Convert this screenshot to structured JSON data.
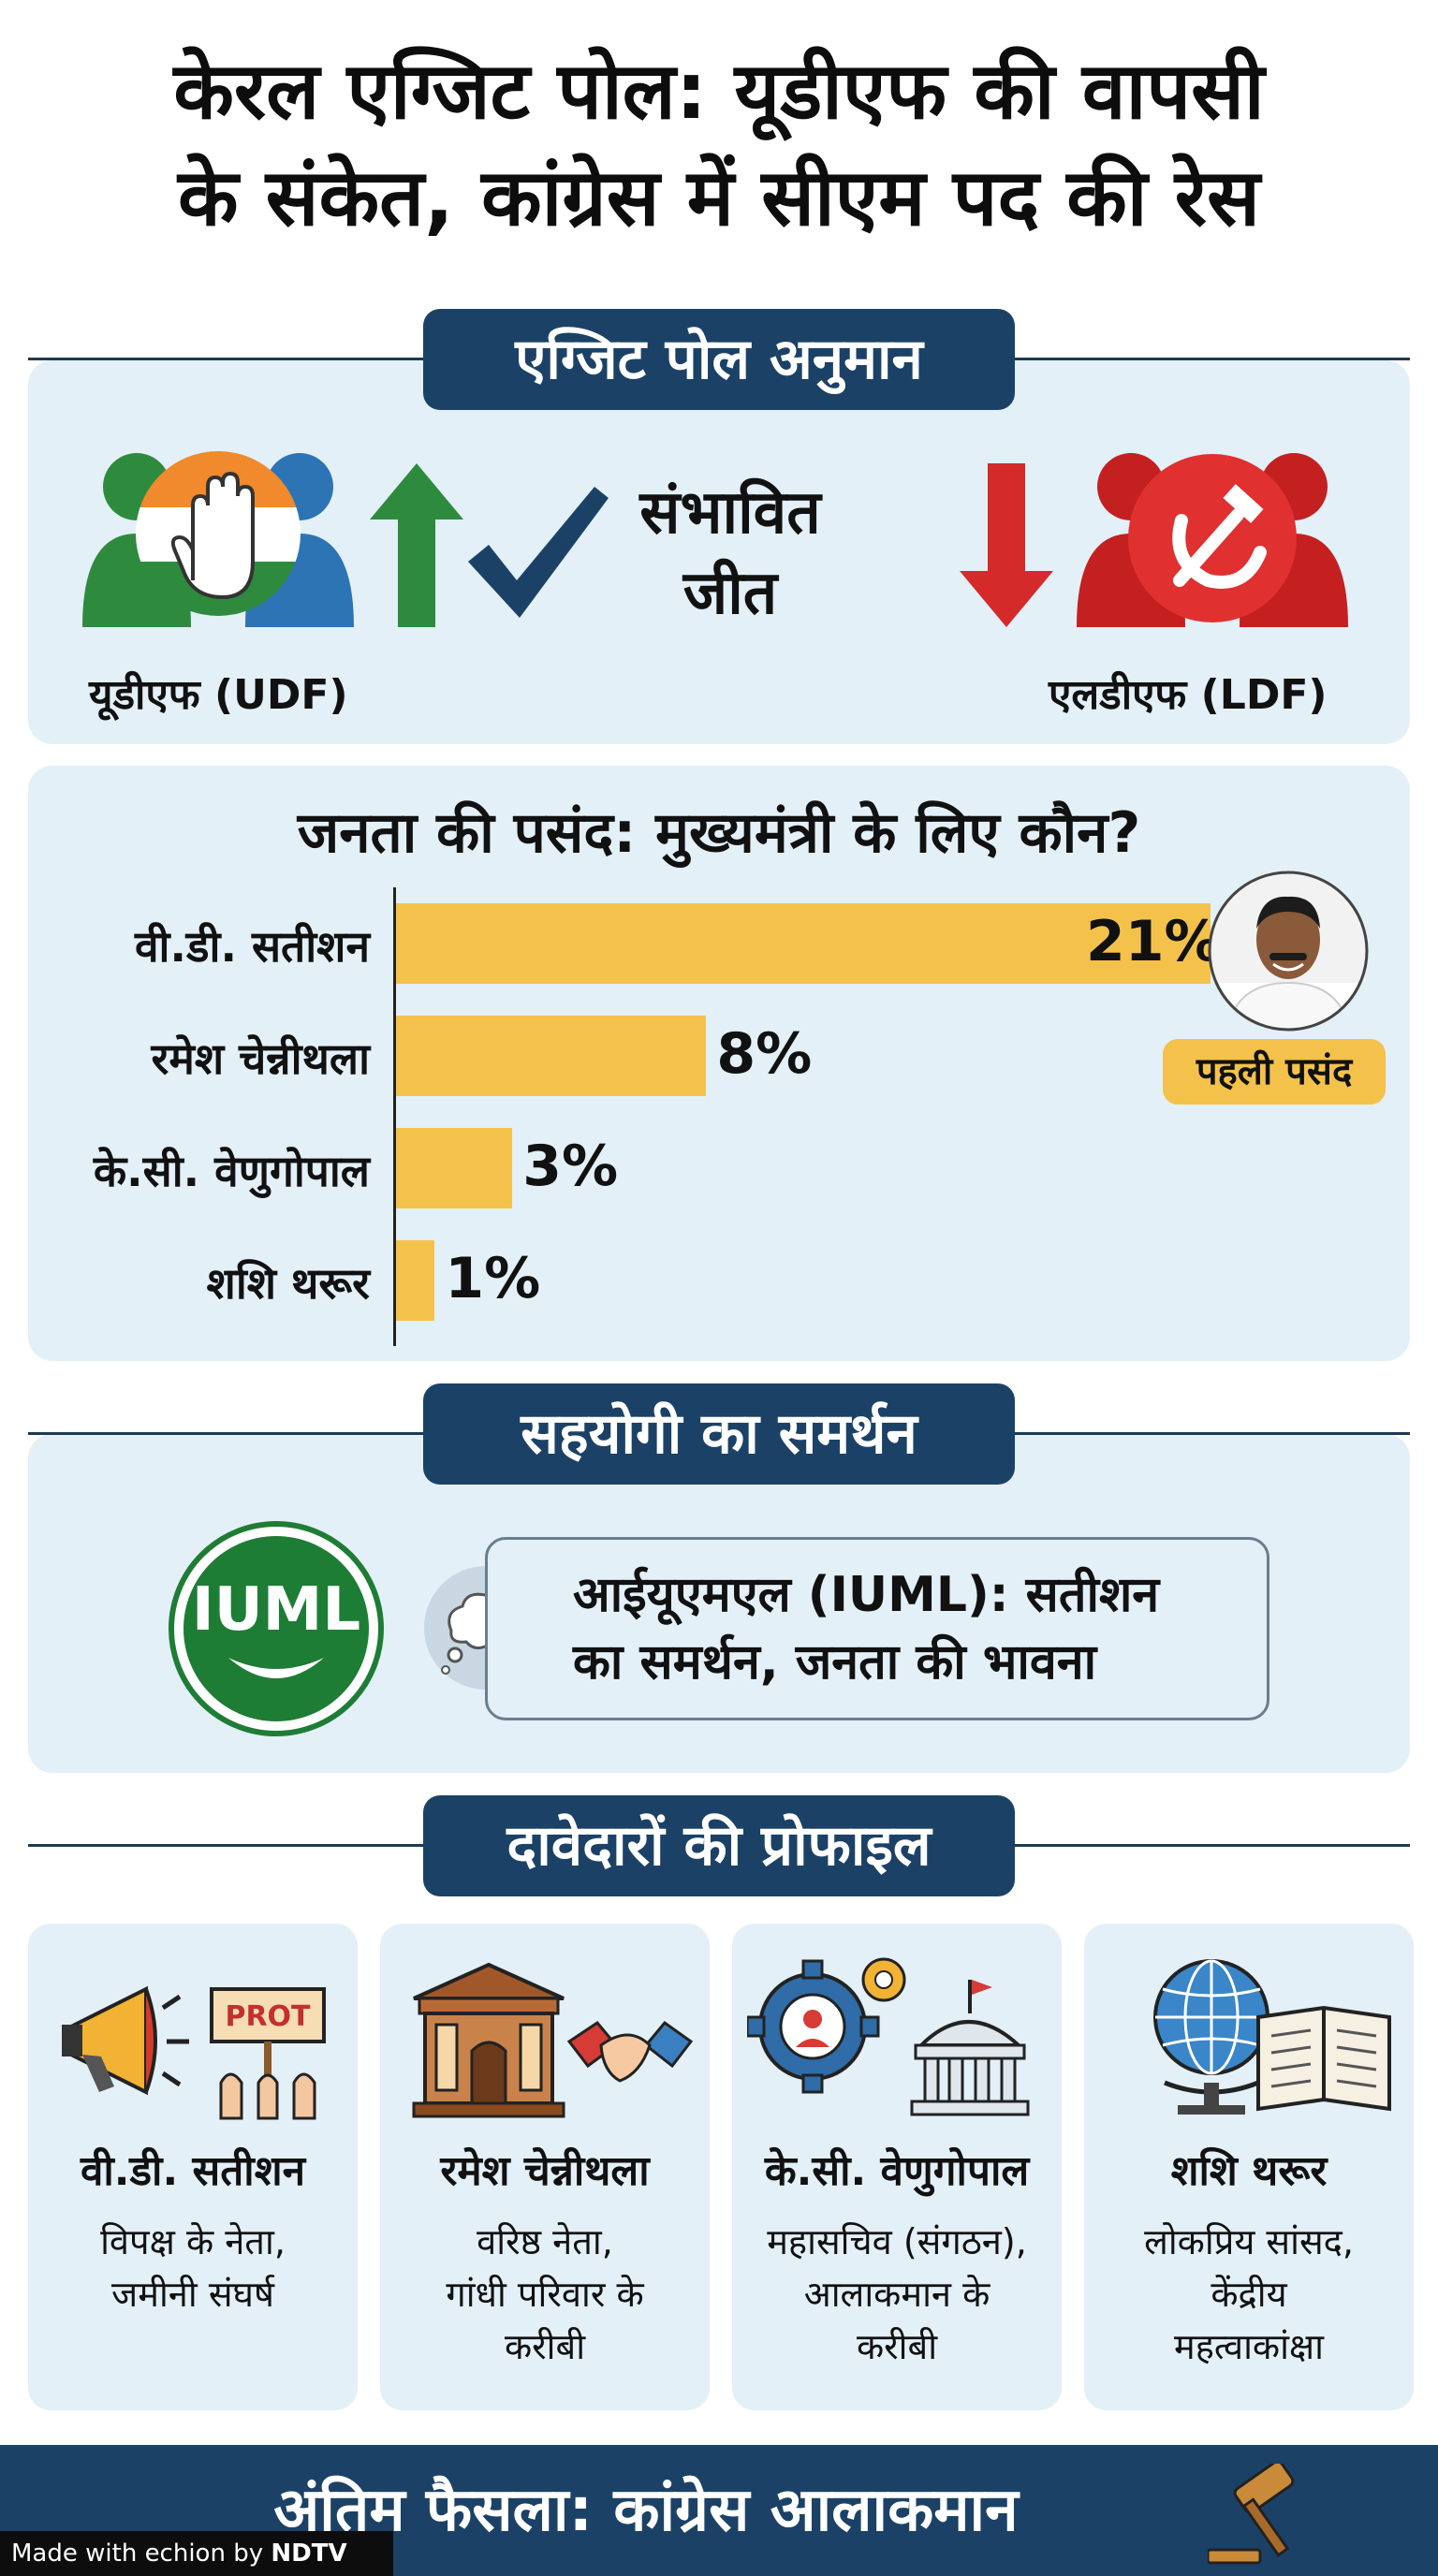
{
  "title": {
    "line1": "केरल एग्जिट पोल: यूडीएफ की वापसी",
    "line2": "के संकेत, कांग्रेस में सीएम पद की रेस"
  },
  "exit_poll": {
    "heading": "एग्जिट पोल अनुमान",
    "udf_label": "यूडीएफ (UDF)",
    "ldf_label": "एलडीएफ (LDF)",
    "win_line1": "संभावित",
    "win_line2": "जीत"
  },
  "cm_choice": {
    "heading": "जनता की पसंद: मुख्यमंत्री के लिए कौन?",
    "badge": "पहली पसंद"
  },
  "chart_data": {
    "type": "bar",
    "orientation": "horizontal",
    "categories": [
      "वी.डी. सतीशन",
      "रमेश चेन्नीथला",
      "के.सी. वेणुगोपाल",
      "शशि थरूर"
    ],
    "values": [
      21,
      8,
      3,
      1
    ],
    "value_labels": [
      "21%",
      "8%",
      "3%",
      "1%"
    ],
    "bar_color": "#f4c24b"
  },
  "ally": {
    "heading": "सहयोगी का समर्थन",
    "logo_text": "IUML",
    "line1": "आईयूएमएल (IUML): सतीशन",
    "line2": "का समर्थन, जनता की भावना"
  },
  "profiles": {
    "heading": "दावेदारों की प्रोफाइल",
    "cards": [
      {
        "name": "वी.डी. सतीशन",
        "desc1": "विपक्ष के नेता,",
        "desc2": "जमीनी संघर्ष",
        "desc3": "",
        "icon": "megaphone-protest-icon",
        "sign": "PROT"
      },
      {
        "name": "रमेश चेन्नीथला",
        "desc1": "वरिष्ठ नेता,",
        "desc2": "गांधी परिवार के",
        "desc3": "करीबी",
        "icon": "building-handshake-icon"
      },
      {
        "name": "के.सी. वेणुगोपाल",
        "desc1": "महासचिव (संगठन),",
        "desc2": "आलाकमान के",
        "desc3": "करीबी",
        "icon": "gear-parliament-icon"
      },
      {
        "name": "शशि थरूर",
        "desc1": "लोकप्रिय सांसद,",
        "desc2": "केंद्रीय",
        "desc3": "महत्वाकांक्षा",
        "icon": "globe-book-icon"
      }
    ]
  },
  "footer": {
    "text": "अंतिम फैसला: कांग्रेस आलाकमान",
    "made_with": "Made with",
    "brand": "echion",
    "by": "by",
    "ndtv": "NDTV"
  },
  "colors": {
    "navy": "#1b4266",
    "panel": "#e3f0f8",
    "bar": "#f4c24b",
    "udf_green": "#2e8b3e",
    "udf_blue": "#2d74b4",
    "ldf_red": "#d42a2a",
    "iuml_green": "#1e7d35"
  }
}
